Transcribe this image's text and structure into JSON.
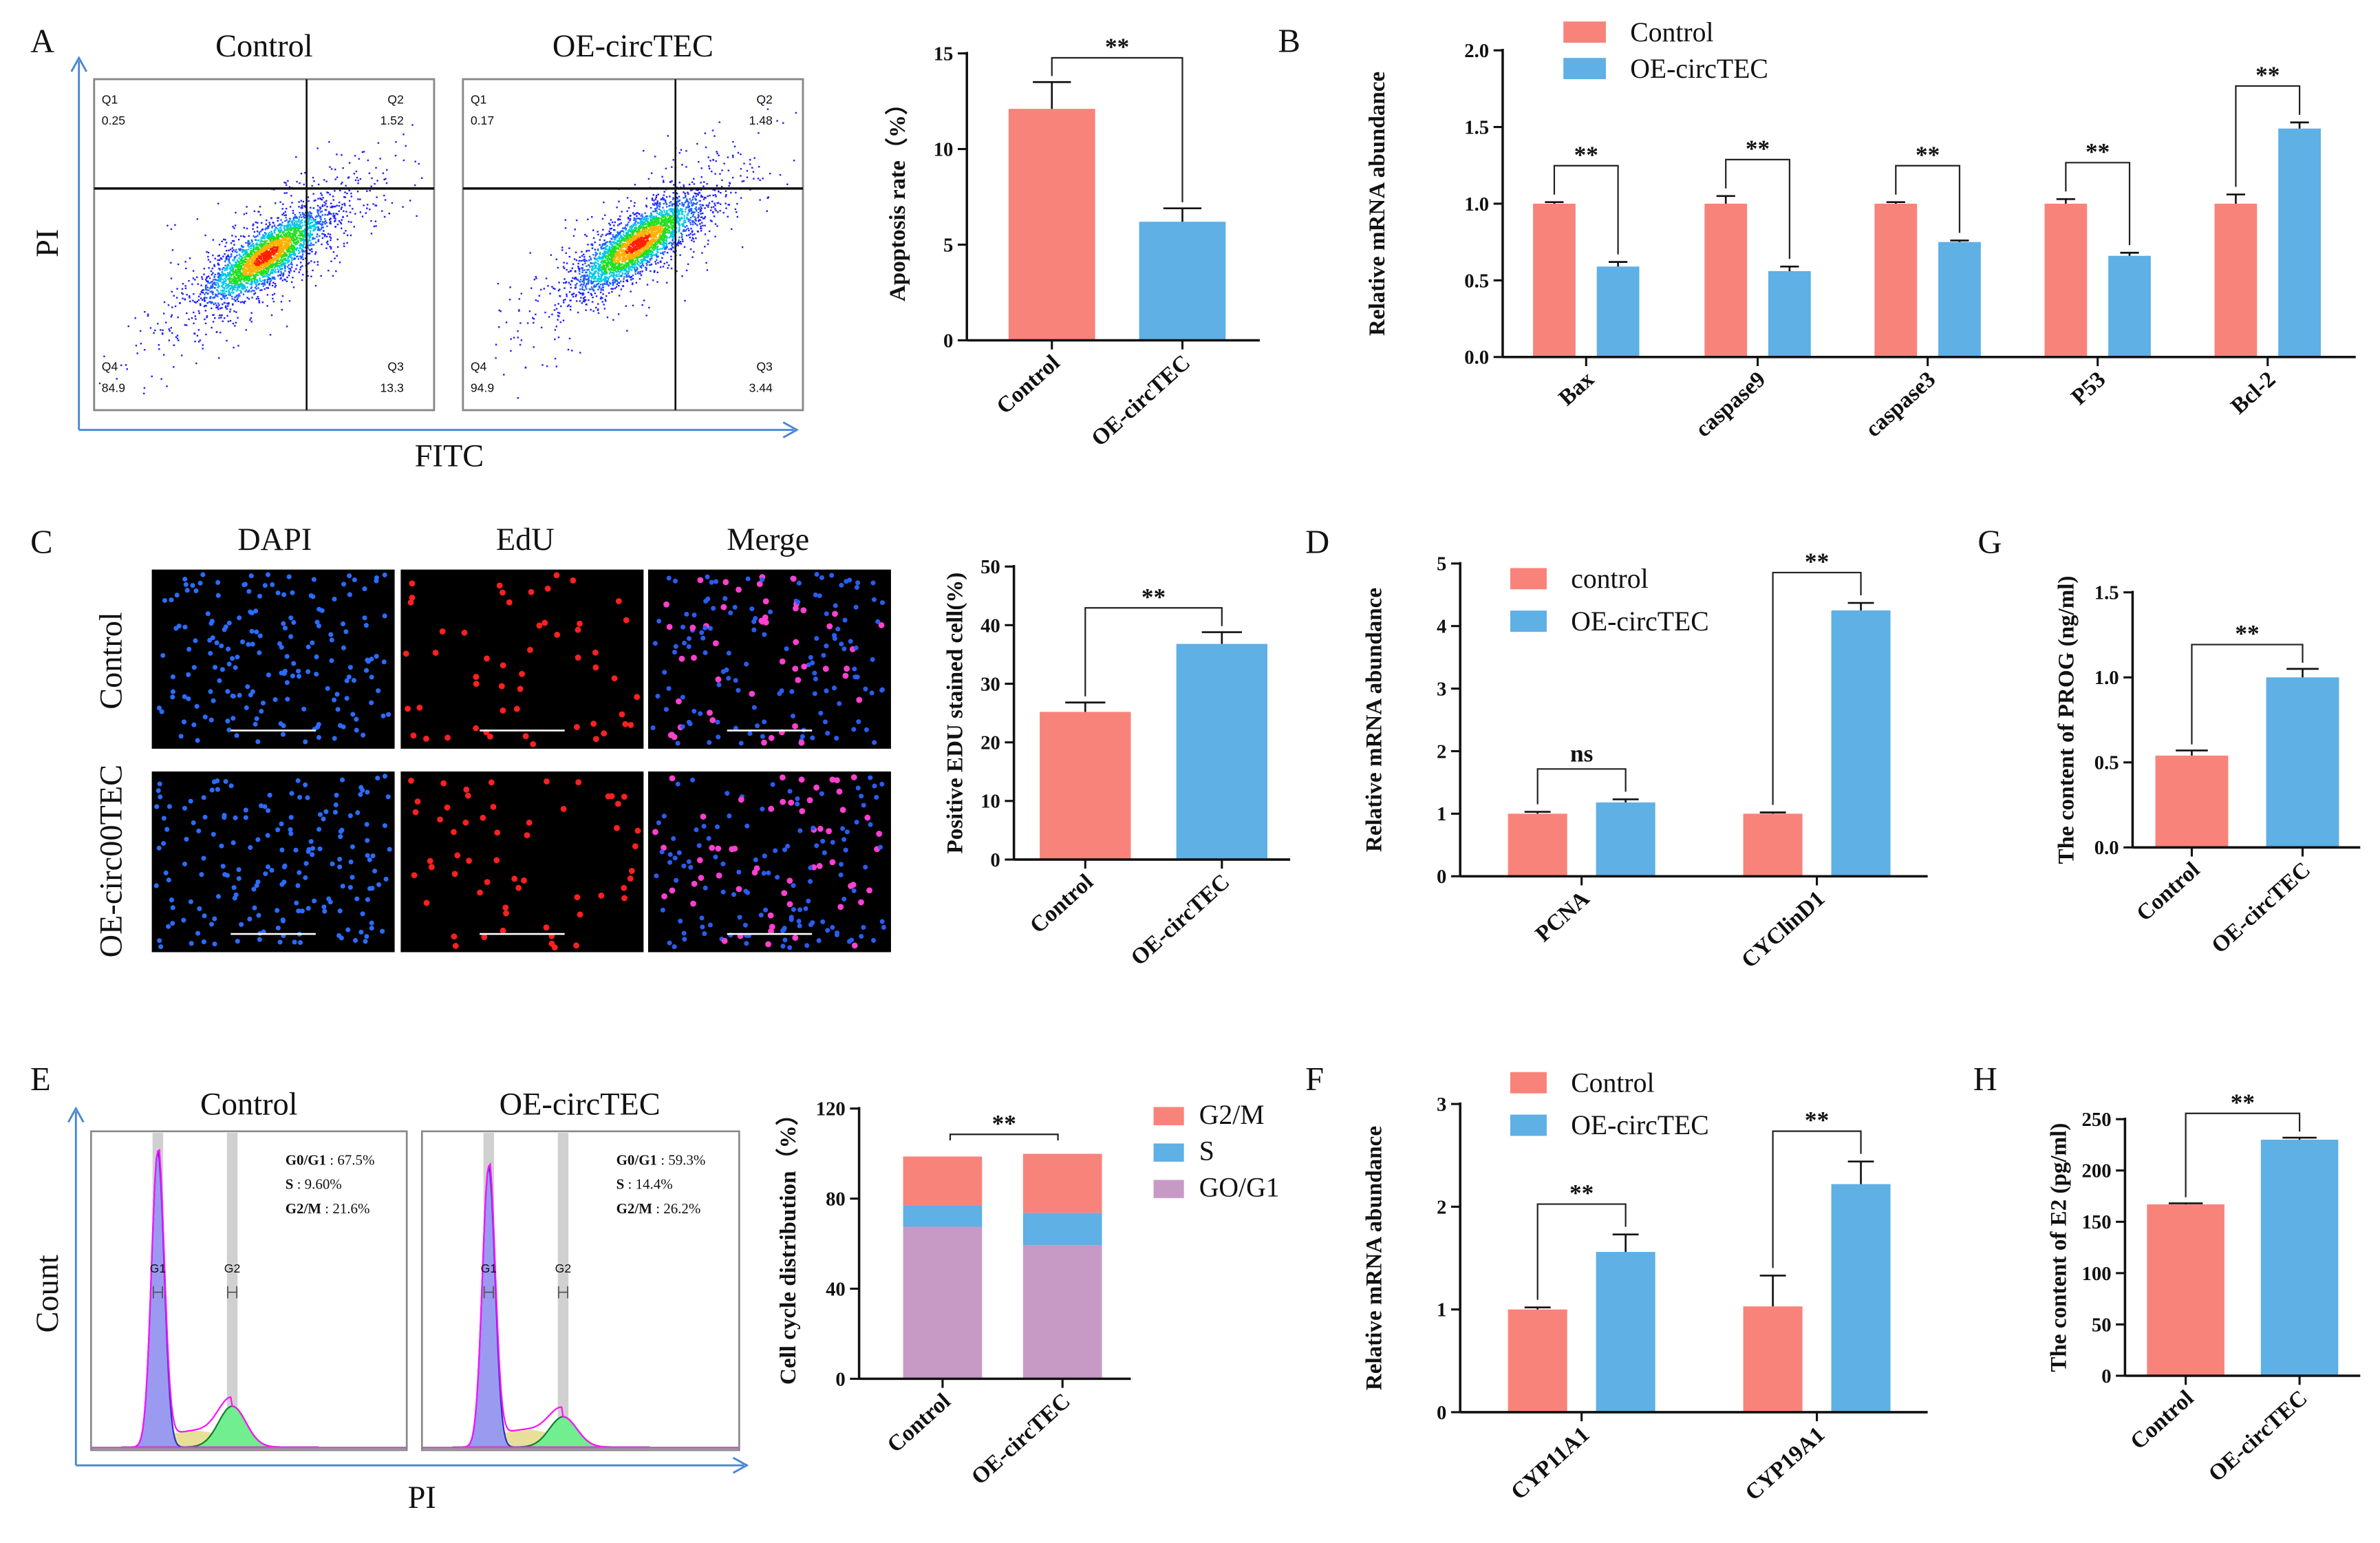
{
  "panel_letters": [
    "A",
    "B",
    "C",
    "D",
    "G",
    "E",
    "F",
    "H"
  ],
  "flow": {
    "x_label": "FITC",
    "y_label": "PI",
    "plots": [
      {
        "title": "Control",
        "quadrants": [
          {
            "name": "Q1",
            "value": "0.25"
          },
          {
            "name": "Q2",
            "value": "1.52"
          },
          {
            "name": "Q4",
            "value": "84.9"
          },
          {
            "name": "Q3",
            "value": "13.3"
          }
        ]
      },
      {
        "title": "OE-circTEC",
        "quadrants": [
          {
            "name": "Q1",
            "value": "0.17"
          },
          {
            "name": "Q2",
            "value": "1.48"
          },
          {
            "name": "Q4",
            "value": "94.9"
          },
          {
            "name": "Q3",
            "value": "3.44"
          }
        ]
      }
    ]
  },
  "edu_images": {
    "columns": [
      "DAPI",
      "EdU",
      "Merge"
    ],
    "rows": [
      "Control",
      "OE-circ00TEC"
    ]
  },
  "cell_cycle_hist": {
    "x_label": "PI",
    "y_label": "Count",
    "peak_labels": [
      "G1",
      "G2"
    ],
    "plots": [
      {
        "title": "Control",
        "stats": [
          {
            "k": "G0/G1",
            "v": " : 67.5%"
          },
          {
            "k": "S",
            "v": " : 9.60%"
          },
          {
            "k": "G2/M",
            "v": " : 21.6%"
          }
        ]
      },
      {
        "title": "OE-circTEC",
        "stats": [
          {
            "k": "G0/G1",
            "v": " : 59.3%"
          },
          {
            "k": "S",
            "v": " : 14.4%"
          },
          {
            "k": "G2/M",
            "v": " : 26.2%"
          }
        ]
      }
    ]
  },
  "colors": {
    "control": "#f8837a",
    "oe": "#5eb0e5",
    "g0g1": "#c79ac6"
  },
  "chart_data": [
    {
      "id": "A",
      "type": "bar",
      "title": "",
      "ylabel": "Apoptosis rate（%）",
      "xlabel": "",
      "categories": [
        "Control",
        "OE-circTEC"
      ],
      "ylim": [
        0,
        15
      ],
      "yticks": [
        "0",
        "5",
        "10",
        "15"
      ],
      "series": [
        {
          "name": "",
          "values": [
            12.1,
            6.2
          ],
          "errors": [
            1.4,
            0.7
          ]
        }
      ],
      "bar_colors": [
        "#f8837a",
        "#5eb0e5"
      ],
      "significance": [
        {
          "label": "**",
          "between": [
            0,
            1
          ]
        }
      ]
    },
    {
      "id": "B",
      "type": "bar",
      "title": "",
      "ylabel": "Relative mRNA abundance",
      "xlabel": "",
      "categories": [
        "Bax",
        "caspase9",
        "caspase3",
        "P53",
        "Bcl-2"
      ],
      "ylim": [
        0,
        2
      ],
      "yticks": [
        "0.0",
        "0.5",
        "1.0",
        "1.5",
        "2.0"
      ],
      "series": [
        {
          "name": "Control",
          "color": "#f8837a",
          "values": [
            1.0,
            1.0,
            1.0,
            1.0,
            1.0
          ],
          "errors": [
            0.01,
            0.05,
            0.01,
            0.03,
            0.06
          ]
        },
        {
          "name": "OE-circTEC",
          "color": "#5eb0e5",
          "values": [
            0.59,
            0.56,
            0.75,
            0.66,
            1.49
          ],
          "errors": [
            0.03,
            0.03,
            0.01,
            0.02,
            0.04
          ]
        }
      ],
      "legend": "top-left",
      "significance": [
        {
          "label": "**",
          "group": 0
        },
        {
          "label": "**",
          "group": 1
        },
        {
          "label": "**",
          "group": 2
        },
        {
          "label": "**",
          "group": 3
        },
        {
          "label": "**",
          "group": 4
        }
      ]
    },
    {
      "id": "C",
      "type": "bar",
      "title": "",
      "ylabel": "Positive EDU stained cell(%)",
      "xlabel": "",
      "categories": [
        "Control",
        "OE-circTEC"
      ],
      "ylim": [
        0,
        50
      ],
      "yticks": [
        "0",
        "10",
        "20",
        "30",
        "40",
        "50"
      ],
      "series": [
        {
          "name": "",
          "values": [
            25.2,
            36.8
          ],
          "errors": [
            1.6,
            2.0
          ]
        }
      ],
      "bar_colors": [
        "#f8837a",
        "#5eb0e5"
      ],
      "significance": [
        {
          "label": "**",
          "between": [
            0,
            1
          ]
        }
      ]
    },
    {
      "id": "D",
      "type": "bar",
      "title": "",
      "ylabel": "Relative mRNA abundance",
      "xlabel": "",
      "categories": [
        "PCNA",
        "CYClinD1"
      ],
      "ylim": [
        0,
        5
      ],
      "yticks": [
        "0",
        "1",
        "2",
        "3",
        "4",
        "5"
      ],
      "series": [
        {
          "name": "control",
          "color": "#f8837a",
          "values": [
            1.0,
            1.0
          ],
          "errors": [
            0.03,
            0.02
          ]
        },
        {
          "name": "OE-circTEC",
          "color": "#5eb0e5",
          "values": [
            1.18,
            4.25
          ],
          "errors": [
            0.05,
            0.12
          ]
        }
      ],
      "legend": "top-left",
      "significance": [
        {
          "label": "ns",
          "group": 0
        },
        {
          "label": "**",
          "group": 1
        }
      ]
    },
    {
      "id": "G",
      "type": "bar",
      "title": "",
      "ylabel": "The content of PROG (ng/ml)",
      "xlabel": "",
      "categories": [
        "Control",
        "OE-circTEC"
      ],
      "ylim": [
        0,
        1.5
      ],
      "yticks": [
        "0.0",
        "0.5",
        "1.0",
        "1.5"
      ],
      "series": [
        {
          "name": "",
          "values": [
            0.54,
            1.0
          ],
          "errors": [
            0.03,
            0.05
          ]
        }
      ],
      "bar_colors": [
        "#f8837a",
        "#5eb0e5"
      ],
      "significance": [
        {
          "label": "**",
          "between": [
            0,
            1
          ]
        }
      ]
    },
    {
      "id": "E",
      "type": "stacked_bar",
      "title": "",
      "ylabel": "Cell cycle distribution（%）",
      "xlabel": "",
      "categories": [
        "Control",
        "OE-circTEC"
      ],
      "ylim": [
        0,
        120
      ],
      "yticks": [
        "0",
        "40",
        "80",
        "120"
      ],
      "series": [
        {
          "name": "GO/G1",
          "color": "#c79ac6",
          "values": [
            67.5,
            59.3
          ]
        },
        {
          "name": "S",
          "color": "#5eb0e5",
          "values": [
            9.6,
            14.4
          ]
        },
        {
          "name": "G2/M",
          "color": "#f8837a",
          "values": [
            21.6,
            26.2
          ]
        }
      ],
      "legend": "right",
      "significance": [
        {
          "label": "**",
          "between": [
            0,
            1
          ]
        }
      ]
    },
    {
      "id": "F",
      "type": "bar",
      "title": "",
      "ylabel": "Relative mRNA abundance",
      "xlabel": "",
      "categories": [
        "CYP11A1",
        "CYP19A1"
      ],
      "ylim": [
        0,
        3
      ],
      "yticks": [
        "0",
        "1",
        "2",
        "3"
      ],
      "series": [
        {
          "name": "Control",
          "color": "#f8837a",
          "values": [
            1.0,
            1.03
          ],
          "errors": [
            0.02,
            0.3
          ]
        },
        {
          "name": "OE-circTEC",
          "color": "#5eb0e5",
          "values": [
            1.56,
            2.22
          ],
          "errors": [
            0.17,
            0.22
          ]
        }
      ],
      "legend": "top-left",
      "significance": [
        {
          "label": "**",
          "group": 0
        },
        {
          "label": "**",
          "group": 1
        }
      ]
    },
    {
      "id": "H",
      "type": "bar",
      "title": "",
      "ylabel": "The content of E2 (pg/ml)",
      "xlabel": "",
      "categories": [
        "Control",
        "OE-circTEC"
      ],
      "ylim": [
        0,
        250
      ],
      "yticks": [
        "0",
        "50",
        "100",
        "150",
        "200",
        "250"
      ],
      "series": [
        {
          "name": "",
          "values": [
            167,
            230
          ],
          "errors": [
            1,
            2
          ]
        }
      ],
      "bar_colors": [
        "#f8837a",
        "#5eb0e5"
      ],
      "significance": [
        {
          "label": "**",
          "between": [
            0,
            1
          ]
        }
      ]
    }
  ]
}
